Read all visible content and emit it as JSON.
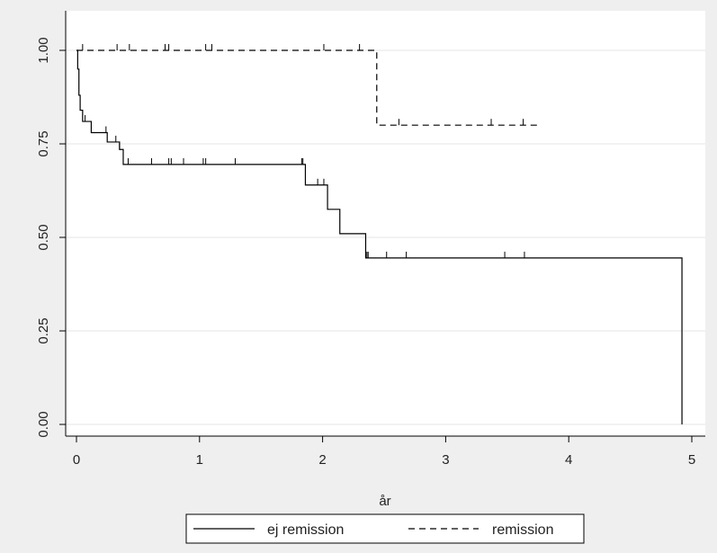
{
  "chart_data": {
    "type": "line",
    "subtype": "kaplan-meier-step",
    "xlabel": "år",
    "ylabel": "",
    "xlim": [
      0,
      5
    ],
    "ylim": [
      0,
      1
    ],
    "xticks": [
      "0",
      "1",
      "2",
      "3",
      "4",
      "5"
    ],
    "yticks": [
      "0.00",
      "0.25",
      "0.50",
      "0.75",
      "1.00"
    ],
    "grid": "horizontal",
    "legend_position": "bottom",
    "series": [
      {
        "name": "ej remission",
        "style": "solid",
        "steps": [
          [
            0,
            1.0
          ],
          [
            0.01,
            0.95
          ],
          [
            0.02,
            0.88
          ],
          [
            0.03,
            0.84
          ],
          [
            0.05,
            0.81
          ],
          [
            0.12,
            0.78
          ],
          [
            0.25,
            0.755
          ],
          [
            0.35,
            0.735
          ],
          [
            0.38,
            0.695
          ],
          [
            1.86,
            0.64
          ],
          [
            2.04,
            0.575
          ],
          [
            2.14,
            0.51
          ],
          [
            2.35,
            0.445
          ],
          [
            4.92,
            0.0
          ]
        ],
        "censored": [
          0.07,
          0.24,
          0.32,
          0.35,
          0.42,
          0.61,
          0.75,
          0.77,
          0.87,
          1.03,
          1.05,
          1.29,
          1.83,
          1.84,
          1.96,
          2.01,
          2.36,
          2.37,
          2.52,
          2.68,
          3.48,
          3.64
        ]
      },
      {
        "name": "remission",
        "style": "dashed",
        "steps": [
          [
            0,
            1.0
          ],
          [
            2.44,
            0.8
          ],
          [
            3.77,
            0.8
          ]
        ],
        "censored": [
          0.05,
          0.33,
          0.43,
          0.72,
          0.75,
          1.05,
          1.1,
          2.01,
          2.3,
          2.62,
          3.37,
          3.63
        ]
      }
    ]
  }
}
